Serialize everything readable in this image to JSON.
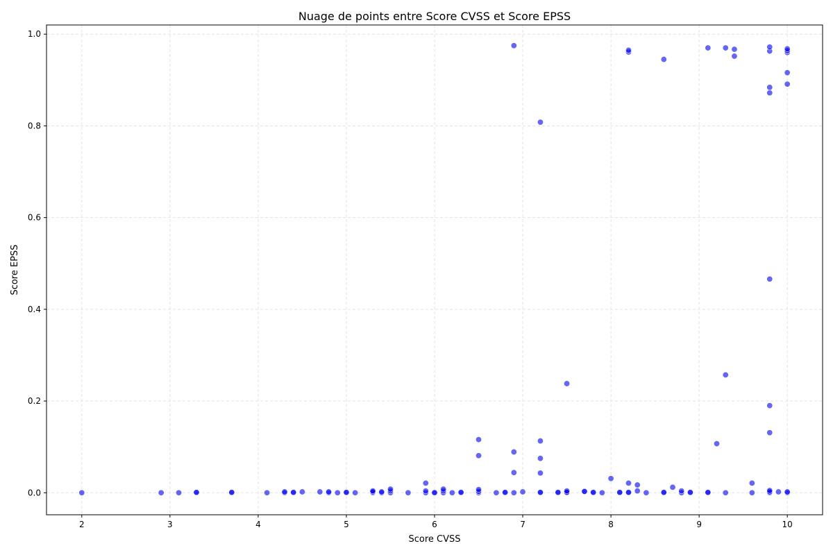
{
  "chart_data": {
    "type": "scatter",
    "title": "Nuage de points entre Score CVSS et Score EPSS",
    "xlabel": "Score CVSS",
    "ylabel": "Score EPSS",
    "xlim": [
      1.6,
      10.4
    ],
    "ylim": [
      -0.048,
      1.02
    ],
    "xticks": [
      2,
      3,
      4,
      5,
      6,
      7,
      8,
      9,
      10
    ],
    "yticks": [
      0.0,
      0.2,
      0.4,
      0.6,
      0.8,
      1.0
    ],
    "xtick_labels": [
      "2",
      "3",
      "4",
      "5",
      "6",
      "7",
      "8",
      "9",
      "10"
    ],
    "ytick_labels": [
      "0.0",
      "0.2",
      "0.4",
      "0.6",
      "0.8",
      "1.0"
    ],
    "grid": true,
    "marker_color": "#0000ee",
    "marker_alpha": 0.6,
    "series": [
      {
        "points": [
          [
            2.0,
            0.0
          ],
          [
            2.9,
            0.0
          ],
          [
            3.1,
            0.0
          ],
          [
            3.3,
            0.0
          ],
          [
            3.3,
            0.001
          ],
          [
            3.7,
            0.0
          ],
          [
            3.7,
            0.001
          ],
          [
            4.1,
            0.0
          ],
          [
            4.3,
            0.0
          ],
          [
            4.3,
            0.002
          ],
          [
            4.4,
            0.0
          ],
          [
            4.4,
            0.001
          ],
          [
            4.5,
            0.002
          ],
          [
            4.7,
            0.002
          ],
          [
            4.8,
            0.0
          ],
          [
            4.8,
            0.002
          ],
          [
            4.9,
            0.0
          ],
          [
            5.0,
            0.0
          ],
          [
            5.0,
            0.001
          ],
          [
            5.1,
            0.0
          ],
          [
            5.3,
            0.0
          ],
          [
            5.3,
            0.002
          ],
          [
            5.3,
            0.004
          ],
          [
            5.4,
            0.0
          ],
          [
            5.4,
            0.002
          ],
          [
            5.5,
            0.0
          ],
          [
            5.5,
            0.004
          ],
          [
            5.5,
            0.008
          ],
          [
            5.7,
            0.0
          ],
          [
            5.9,
            0.0
          ],
          [
            5.9,
            0.004
          ],
          [
            5.9,
            0.021
          ],
          [
            6.0,
            0.001
          ],
          [
            6.0,
            0.0
          ],
          [
            6.1,
            0.0
          ],
          [
            6.1,
            0.004
          ],
          [
            6.1,
            0.008
          ],
          [
            6.2,
            0.0
          ],
          [
            6.3,
            0.0
          ],
          [
            6.3,
            0.001
          ],
          [
            6.5,
            0.0
          ],
          [
            6.5,
            0.003
          ],
          [
            6.5,
            0.007
          ],
          [
            6.5,
            0.081
          ],
          [
            6.5,
            0.116
          ],
          [
            6.7,
            0.0
          ],
          [
            6.8,
            0.0
          ],
          [
            6.8,
            0.001
          ],
          [
            6.9,
            0.0
          ],
          [
            6.9,
            0.044
          ],
          [
            6.9,
            0.089
          ],
          [
            6.9,
            0.975
          ],
          [
            7.0,
            0.002
          ],
          [
            7.2,
            0.0
          ],
          [
            7.2,
            0.001
          ],
          [
            7.2,
            0.043
          ],
          [
            7.2,
            0.075
          ],
          [
            7.2,
            0.113
          ],
          [
            7.2,
            0.808
          ],
          [
            7.4,
            0.0
          ],
          [
            7.4,
            0.001
          ],
          [
            7.5,
            0.0
          ],
          [
            7.5,
            0.001
          ],
          [
            7.5,
            0.004
          ],
          [
            7.5,
            0.238
          ],
          [
            7.7,
            0.002
          ],
          [
            7.7,
            0.003
          ],
          [
            7.8,
            0.0
          ],
          [
            7.8,
            0.001
          ],
          [
            7.9,
            0.0
          ],
          [
            8.0,
            0.031
          ],
          [
            8.1,
            0.0
          ],
          [
            8.1,
            0.001
          ],
          [
            8.2,
            0.0
          ],
          [
            8.2,
            0.001
          ],
          [
            8.2,
            0.021
          ],
          [
            8.2,
            0.961
          ],
          [
            8.2,
            0.965
          ],
          [
            8.3,
            0.004
          ],
          [
            8.3,
            0.017
          ],
          [
            8.4,
            0.0
          ],
          [
            8.6,
            0.0
          ],
          [
            8.6,
            0.001
          ],
          [
            8.6,
            0.945
          ],
          [
            8.7,
            0.012
          ],
          [
            8.8,
            0.0
          ],
          [
            8.8,
            0.004
          ],
          [
            8.9,
            0.0
          ],
          [
            8.9,
            0.001
          ],
          [
            9.1,
            0.0
          ],
          [
            9.1,
            0.001
          ],
          [
            9.1,
            0.97
          ],
          [
            9.2,
            0.107
          ],
          [
            9.3,
            0.0
          ],
          [
            9.3,
            0.257
          ],
          [
            9.3,
            0.97
          ],
          [
            9.4,
            0.952
          ],
          [
            9.4,
            0.967
          ],
          [
            9.6,
            0.0
          ],
          [
            9.6,
            0.021
          ],
          [
            9.8,
            0.0
          ],
          [
            9.8,
            0.002
          ],
          [
            9.8,
            0.005
          ],
          [
            9.8,
            0.131
          ],
          [
            9.8,
            0.19
          ],
          [
            9.8,
            0.466
          ],
          [
            9.8,
            0.872
          ],
          [
            9.8,
            0.884
          ],
          [
            9.8,
            0.963
          ],
          [
            9.8,
            0.972
          ],
          [
            9.9,
            0.002
          ],
          [
            10.0,
            0.0
          ],
          [
            10.0,
            0.002
          ],
          [
            10.0,
            0.891
          ],
          [
            10.0,
            0.916
          ],
          [
            10.0,
            0.96
          ],
          [
            10.0,
            0.964
          ],
          [
            10.0,
            0.968
          ]
        ]
      }
    ]
  }
}
